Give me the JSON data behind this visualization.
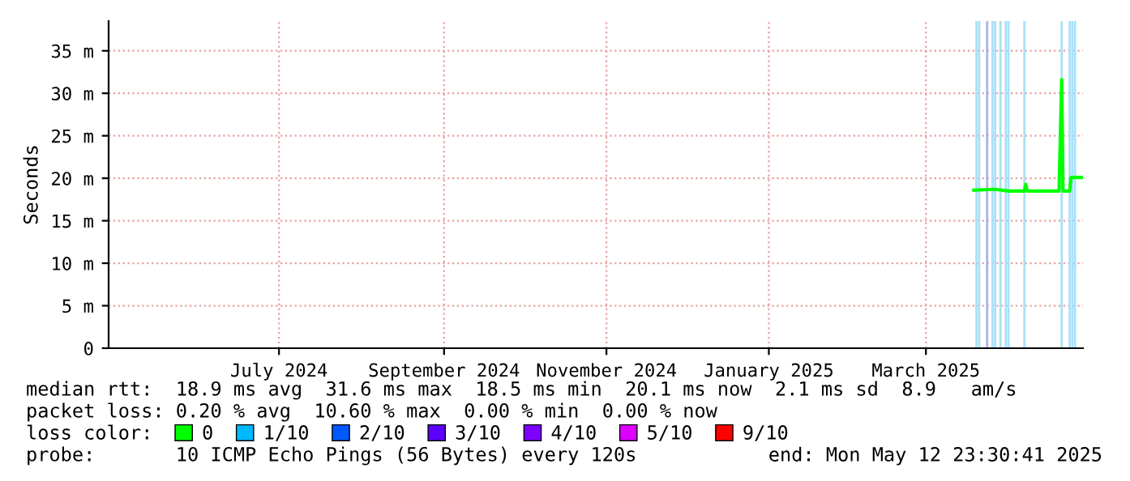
{
  "chart_data": {
    "type": "line",
    "ylabel": "Seconds",
    "x": [
      "2025-04-02",
      "2025-04-10",
      "2025-04-15",
      "2025-04-21",
      "2025-04-21T12:00",
      "2025-04-22",
      "2025-05-04",
      "2025-05-05",
      "2025-05-05T12:00",
      "2025-05-08",
      "2025-05-08T12:00",
      "2025-05-12T23:00"
    ],
    "series": [
      {
        "name": "0",
        "color": "#00ff00",
        "values": [
          18.6,
          18.7,
          18.5,
          18.5,
          19.3,
          18.5,
          18.5,
          31.6,
          18.5,
          18.5,
          20.1,
          20.1
        ]
      },
      {
        "name": "1/10",
        "color": "#00b8ff",
        "values": [
          null,
          null,
          null,
          null,
          null,
          null,
          null,
          null,
          null,
          null,
          null,
          null
        ]
      },
      {
        "name": "2/10",
        "color": "#0059ff",
        "values": [
          null,
          null,
          null,
          null,
          null,
          null,
          null,
          null,
          null,
          null,
          null,
          null
        ]
      },
      {
        "name": "3/10",
        "color": "#5e00ff",
        "values": [
          null,
          null,
          null,
          null,
          null,
          null,
          null,
          null,
          null,
          null,
          null,
          null
        ]
      },
      {
        "name": "4/10",
        "color": "#7e00ff",
        "values": [
          null,
          null,
          null,
          null,
          null,
          null,
          null,
          null,
          null,
          null,
          null,
          null
        ]
      },
      {
        "name": "5/10",
        "color": "#dd00ff",
        "values": [
          null,
          null,
          null,
          null,
          null,
          null,
          null,
          null,
          null,
          null,
          null,
          null
        ]
      },
      {
        "name": "9/10",
        "color": "#ff0000",
        "values": [
          null,
          null,
          null,
          null,
          null,
          null,
          null,
          null,
          null,
          null,
          null,
          null
        ]
      }
    ],
    "legend_title": "loss color:",
    "legend": "bottom",
    "xlim": [
      "2024-05-12",
      "2025-05-13"
    ],
    "xticks": [
      {
        "value": "2024-07-15",
        "label": "July 2024"
      },
      {
        "value": "2024-09-15",
        "label": "September 2024"
      },
      {
        "value": "2024-11-15",
        "label": "November 2024"
      },
      {
        "value": "2025-01-15",
        "label": "January 2025"
      },
      {
        "value": "2025-03-15",
        "label": "March 2025"
      }
    ],
    "ylim": [
      0,
      38.5
    ],
    "yticks": [
      0,
      {
        "value": 5,
        "label": "5 m"
      },
      {
        "value": 10,
        "label": "10 m"
      },
      {
        "value": 15,
        "label": "15 m"
      },
      {
        "value": 20,
        "label": "20 m"
      },
      {
        "value": 25,
        "label": "25 m"
      },
      {
        "value": 30,
        "label": "30 m"
      },
      {
        "value": 35,
        "label": "35 m"
      }
    ],
    "grid": true,
    "ref_lines": [
      {
        "axis": "x",
        "value": "2025-04-03",
        "color": "#a8e0f8"
      },
      {
        "axis": "x",
        "value": "2025-04-04",
        "color": "#a8e0f8"
      },
      {
        "axis": "x",
        "value": "2025-04-07",
        "color": "#a8b0f0"
      },
      {
        "axis": "x",
        "value": "2025-04-09",
        "color": "#a8e0f8"
      },
      {
        "axis": "x",
        "value": "2025-04-10",
        "color": "#a8e0f8"
      },
      {
        "axis": "x",
        "value": "2025-04-12",
        "color": "#a8e0f8"
      },
      {
        "axis": "x",
        "value": "2025-04-14",
        "color": "#a8e0f8"
      },
      {
        "axis": "x",
        "value": "2025-04-15",
        "color": "#a8e0f8"
      },
      {
        "axis": "x",
        "value": "2025-04-21",
        "color": "#a8e0f8"
      },
      {
        "axis": "x",
        "value": "2025-05-05",
        "color": "#a8e0f8"
      },
      {
        "axis": "x",
        "value": "2025-05-08",
        "color": "#a8e0f8"
      },
      {
        "axis": "x",
        "value": "2025-05-09",
        "color": "#a8e0f8"
      },
      {
        "axis": "x",
        "value": "2025-05-10",
        "color": "#a8e0f8"
      }
    ],
    "annotations": [
      "median rtt:  18.9 ms avg  31.6 ms max  18.5 ms min  20.1 ms now  2.1 ms sd  8.9   am/s",
      "packet loss: 0.20 % avg  10.60 % max  0.00 % min  0.00 % now",
      "probe:       10 ICMP Echo Pings (56 Bytes) every 120s",
      "end: Mon May 12 23:30:41 2025"
    ]
  }
}
